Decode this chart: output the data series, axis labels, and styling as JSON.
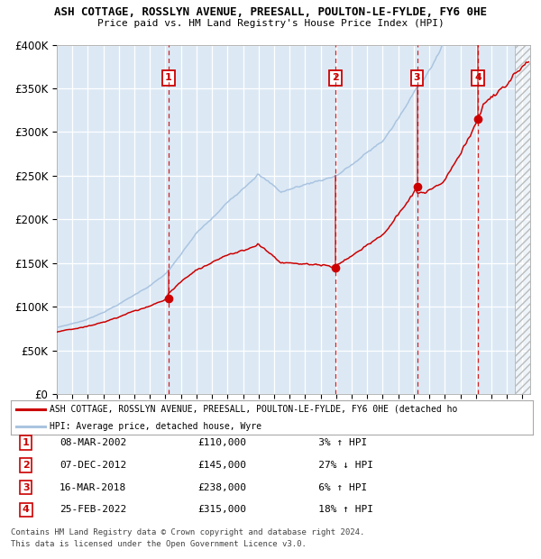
{
  "title1": "ASH COTTAGE, ROSSLYN AVENUE, PREESALL, POULTON-LE-FYLDE, FY6 0HE",
  "title2": "Price paid vs. HM Land Registry's House Price Index (HPI)",
  "background_color": "#dce9f5",
  "hpi_color": "#aac4e0",
  "price_color": "#cc0000",
  "xmin": 1995.0,
  "xmax": 2025.5,
  "ymin": 0,
  "ymax": 400000,
  "yticks": [
    0,
    50000,
    100000,
    150000,
    200000,
    250000,
    300000,
    350000,
    400000
  ],
  "ytick_labels": [
    "£0",
    "£50K",
    "£100K",
    "£150K",
    "£200K",
    "£250K",
    "£300K",
    "£350K",
    "£400K"
  ],
  "sales": [
    {
      "num": 1,
      "date_label": "08-MAR-2002",
      "year": 2002.19,
      "price": 110000,
      "pct": "3%",
      "direction": "↑"
    },
    {
      "num": 2,
      "date_label": "07-DEC-2012",
      "year": 2012.93,
      "price": 145000,
      "pct": "27%",
      "direction": "↓"
    },
    {
      "num": 3,
      "date_label": "16-MAR-2018",
      "year": 2018.21,
      "price": 238000,
      "pct": "6%",
      "direction": "↑"
    },
    {
      "num": 4,
      "date_label": "25-FEB-2022",
      "year": 2022.15,
      "price": 315000,
      "pct": "18%",
      "direction": "↑"
    }
  ],
  "legend_label1": "ASH COTTAGE, ROSSLYN AVENUE, PREESALL, POULTON-LE-FYLDE, FY6 0HE (detached ho",
  "legend_label2": "HPI: Average price, detached house, Wyre",
  "footer1": "Contains HM Land Registry data © Crown copyright and database right 2024.",
  "footer2": "This data is licensed under the Open Government Licence v3.0."
}
